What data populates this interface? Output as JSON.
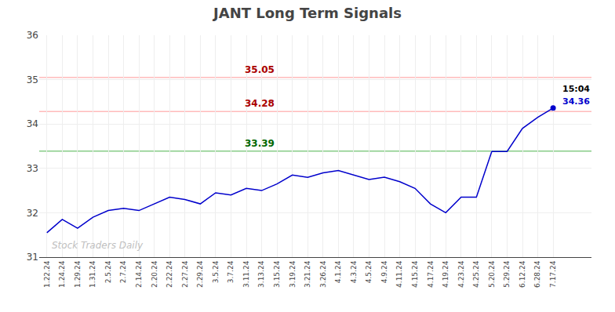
{
  "chart_data": {
    "type": "line",
    "title": "JANT Long Term Signals",
    "categories": [
      "1.22.24",
      "1.24.24",
      "1.29.24",
      "1.31.24",
      "2.5.24",
      "2.7.24",
      "2.14.24",
      "2.20.24",
      "2.22.24",
      "2.27.24",
      "2.29.24",
      "3.5.24",
      "3.7.24",
      "3.11.24",
      "3.13.24",
      "3.15.24",
      "3.19.24",
      "3.21.24",
      "3.26.24",
      "4.1.24",
      "4.3.24",
      "4.5.24",
      "4.9.24",
      "4.11.24",
      "4.15.24",
      "4.17.24",
      "4.19.24",
      "4.23.24",
      "4.25.24",
      "5.20.24",
      "5.29.24",
      "6.12.24",
      "6.28.24",
      "7.17.24"
    ],
    "series": [
      {
        "name": "JANT",
        "color": "#0000cc",
        "marker": "last_point",
        "values": [
          31.55,
          31.85,
          31.65,
          31.9,
          32.05,
          32.1,
          32.05,
          32.2,
          32.35,
          32.3,
          32.2,
          32.45,
          32.4,
          32.55,
          32.5,
          32.65,
          32.85,
          32.8,
          32.9,
          32.95,
          32.85,
          32.75,
          32.8,
          32.7,
          32.55,
          32.2,
          32.0,
          32.35,
          32.35,
          33.38,
          33.38,
          33.9,
          34.15,
          34.36
        ]
      }
    ],
    "reference_lines": [
      {
        "value": 35.05,
        "label": "35.05",
        "color": "#ffbbbb",
        "label_color": "#aa0000"
      },
      {
        "value": 34.28,
        "label": "34.28",
        "color": "#ffbbbb",
        "label_color": "#aa0000"
      },
      {
        "value": 33.39,
        "label": "33.39",
        "color": "#88cc88",
        "label_color": "#006600"
      }
    ],
    "annotations": [
      {
        "text": "15:04",
        "color": "#000000"
      },
      {
        "text": "34.36",
        "color": "#0000cc"
      }
    ],
    "watermark": {
      "text": "Stock Traders Daily",
      "color": "#c0c0c0"
    },
    "ylim": [
      31,
      36
    ],
    "yticks": [
      31,
      32,
      33,
      34,
      35,
      36
    ],
    "grid": true
  }
}
